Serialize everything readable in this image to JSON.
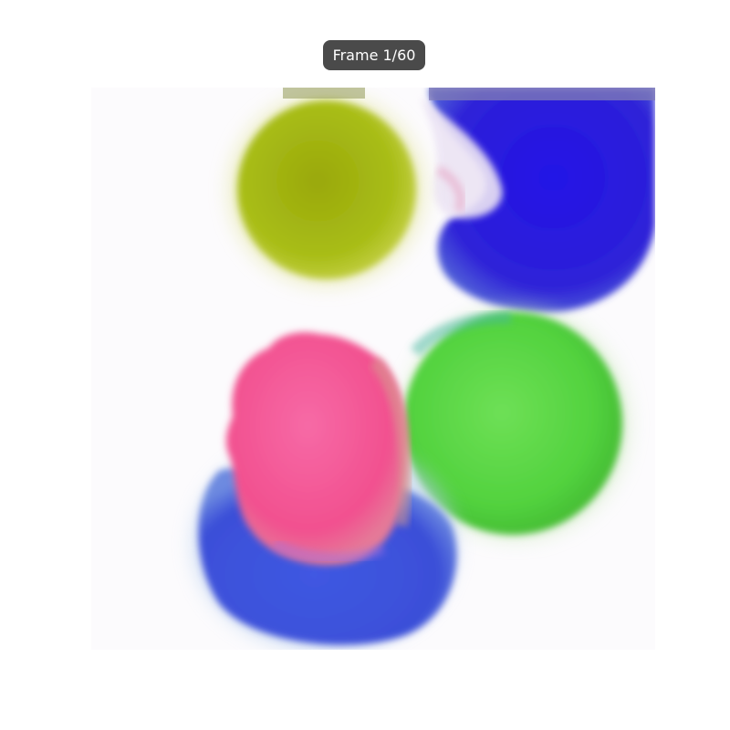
{
  "badge": {
    "text": "Frame 1/60",
    "background": "#4a4a4a",
    "text_color": "#ffffff"
  },
  "image": {
    "description_blobs": [
      {
        "name": "olive-blob",
        "color": "#a7b414"
      },
      {
        "name": "blue-blob-top",
        "color": "#2b1fe0"
      },
      {
        "name": "green-blob",
        "color": "#5bd63f"
      },
      {
        "name": "pink-blob",
        "color": "#f45a9a"
      },
      {
        "name": "blue-blob-bottom",
        "color": "#3e5fe0"
      }
    ]
  }
}
